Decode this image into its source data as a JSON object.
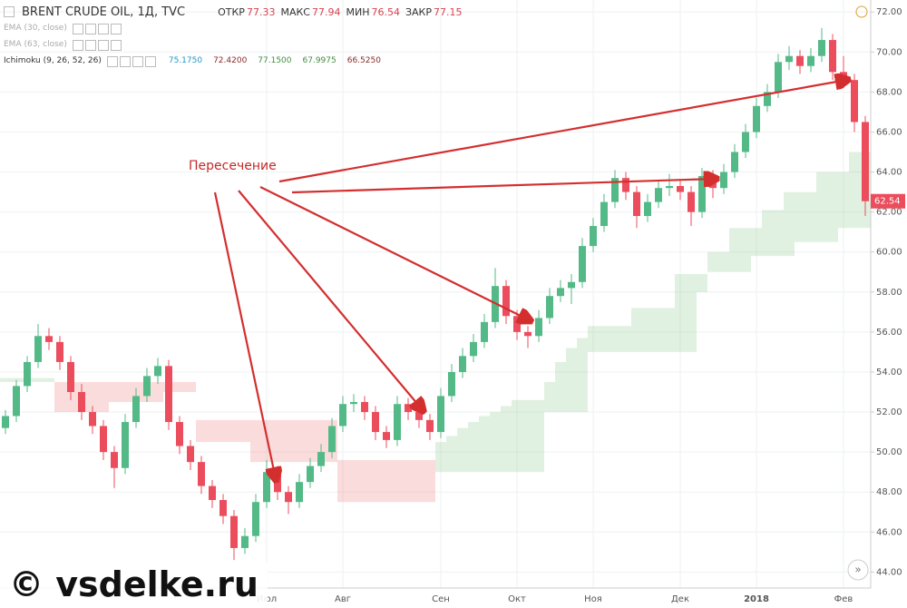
{
  "chart_data": {
    "type": "candlestick",
    "title": "BRENT CRUDE OIL, 1Д, TVC",
    "header": [
      {
        "label": "ОТКР",
        "value": "77.33"
      },
      {
        "label": "МАКС",
        "value": "77.94"
      },
      {
        "label": "МИН",
        "value": "76.54"
      },
      {
        "label": "ЗАКР",
        "value": "77.15"
      }
    ],
    "indicators": [
      {
        "name": "EMA (30, close)"
      },
      {
        "name": "EMA (63, close)"
      },
      {
        "name": "Ichimoku (9, 26, 52, 26)",
        "values": [
          "75.1750",
          "72.4200",
          "77.1500",
          "67.9975",
          "66.5250"
        ],
        "value_colors": [
          "#2196c4",
          "#8b2a2a",
          "#3f8f3f",
          "#3f8f3f",
          "#8b2a2a"
        ]
      }
    ],
    "annotation": "Пересечение",
    "watermark": "© vsdelke.ru",
    "categories": [
      null,
      null,
      null,
      null,
      null,
      null,
      null,
      null,
      null,
      null,
      null,
      null,
      null,
      null,
      null,
      null,
      null,
      null,
      null,
      null,
      null,
      null,
      null,
      null,
      "Июл",
      null,
      null,
      null,
      null,
      null,
      null,
      "Авг",
      null,
      null,
      null,
      null,
      null,
      null,
      null,
      null,
      "Сен",
      null,
      null,
      null,
      null,
      null,
      null,
      "Окт",
      null,
      null,
      null,
      null,
      null,
      null,
      "Ноя",
      null,
      null,
      null,
      null,
      null,
      null,
      null,
      "Дек",
      null,
      null,
      null,
      null,
      null,
      null,
      "2018",
      null,
      null,
      null,
      null,
      null,
      null,
      null,
      "Фев",
      null,
      null
    ],
    "open": [
      51.2,
      51.8,
      53.3,
      54.5,
      55.8,
      55.5,
      54.5,
      53,
      52,
      51.3,
      50,
      49.2,
      51.5,
      52.8,
      53.8,
      54.3,
      51.5,
      50.3,
      49.5,
      48.3,
      47.6,
      46.8,
      45.2,
      45.8,
      47.5,
      49,
      48,
      47.5,
      48.5,
      49.3,
      50,
      51.3,
      52.4,
      52.5,
      52,
      51,
      50.6,
      52.4,
      52,
      51.6,
      51,
      52.8,
      54,
      54.8,
      55.5,
      56.5,
      58.3,
      56.8,
      56,
      55.8,
      56.7,
      57.8,
      58.2,
      58.5,
      60.3,
      61.3,
      62.5,
      63.7,
      63,
      61.8,
      62.5,
      63.2,
      63.3,
      63,
      62,
      63.8,
      63.2,
      64,
      65,
      66,
      67.3,
      68,
      69.5,
      69.8,
      69.3,
      69.8,
      70.6,
      69,
      68.6,
      66.5
    ],
    "high": [
      52.1,
      53.6,
      54.8,
      56.4,
      56.2,
      55.8,
      54.8,
      53.4,
      52.3,
      51.6,
      50.3,
      51.9,
      53.2,
      54.2,
      54.7,
      54.6,
      51.8,
      50.6,
      49.8,
      48.6,
      47.9,
      47.1,
      46.2,
      47.9,
      49.6,
      49.3,
      48.3,
      48.9,
      49.7,
      50.4,
      51.7,
      52.8,
      52.9,
      52.8,
      52.3,
      51.3,
      52.8,
      52.7,
      52.3,
      51.9,
      53.2,
      54.4,
      55.2,
      55.9,
      56.9,
      59.2,
      58.6,
      57.1,
      56.3,
      57.1,
      58.2,
      58.6,
      58.9,
      60.7,
      61.7,
      62.9,
      64.1,
      64,
      63.3,
      62.9,
      63.6,
      63.9,
      63.6,
      63.3,
      64.2,
      64.1,
      64.4,
      65.4,
      66.4,
      67.7,
      68.4,
      69.9,
      70.3,
      70.1,
      70.2,
      71.2,
      70.9,
      69.8,
      68.9,
      66.8
    ],
    "low": [
      50.9,
      51.5,
      53,
      54.2,
      55.1,
      54.1,
      52.6,
      51.6,
      50.9,
      49.6,
      48.2,
      48.9,
      51.2,
      52.5,
      53.4,
      51.1,
      49.9,
      49.1,
      47.9,
      47.2,
      46.4,
      44.6,
      44.9,
      45.5,
      47.2,
      47.6,
      46.9,
      47.2,
      48.2,
      49,
      49.7,
      51,
      52,
      51.6,
      50.6,
      50.2,
      50.3,
      51.6,
      51.2,
      50.6,
      50.7,
      52.5,
      53.7,
      54.5,
      55.2,
      56.2,
      56.4,
      55.6,
      55.2,
      55.5,
      56.4,
      57.5,
      57.4,
      58.2,
      60,
      61,
      62.2,
      62.6,
      61.2,
      61.5,
      62.2,
      62.8,
      62.6,
      61.3,
      61.7,
      62.7,
      62.9,
      63.7,
      64.7,
      65.7,
      67,
      67.7,
      69.1,
      68.9,
      69,
      69.5,
      68.6,
      68.2,
      66,
      61.8
    ],
    "close": [
      51.8,
      53.3,
      54.5,
      55.8,
      55.5,
      54.5,
      53,
      52,
      51.3,
      50,
      49.2,
      51.5,
      52.8,
      53.8,
      54.3,
      51.5,
      50.3,
      49.5,
      48.3,
      47.6,
      46.8,
      45.2,
      45.8,
      47.5,
      49,
      48,
      47.5,
      48.5,
      49.3,
      50,
      51.3,
      52.4,
      52.5,
      52,
      51,
      50.6,
      52.4,
      52,
      51.6,
      51,
      52.8,
      54,
      54.8,
      55.5,
      56.5,
      58.3,
      56.8,
      56,
      55.8,
      56.7,
      57.8,
      58.2,
      58.5,
      60.3,
      61.3,
      62.5,
      63.7,
      63,
      61.8,
      62.5,
      63.2,
      63.3,
      63,
      62,
      63.8,
      63.2,
      64,
      65,
      66,
      67.3,
      68,
      69.5,
      69.8,
      69.3,
      69.8,
      70.6,
      69,
      68.6,
      66.5,
      62.54
    ],
    "up_color": "#53b987",
    "down_color": "#eb4d5c",
    "cloud": {
      "span_a": [
        53.7,
        53.7,
        53.7,
        53.7,
        53.7,
        52,
        52,
        52,
        52,
        52,
        52.5,
        52.5,
        52.5,
        52.5,
        52.5,
        53,
        53,
        53,
        50.5,
        50.5,
        50.5,
        50.5,
        50.5,
        49.5,
        49.5,
        49.5,
        49.5,
        49.5,
        49.5,
        49.5,
        49.5,
        47.5,
        47.5,
        47.5,
        47.5,
        47.5,
        47.5,
        47.5,
        47.5,
        47.5,
        50.5,
        50.8,
        51.2,
        51.5,
        51.8,
        52,
        52.3,
        52.6,
        52.6,
        52.6,
        53.5,
        54.5,
        55.2,
        55.7,
        56.3,
        56.3,
        56.3,
        56.3,
        57.2,
        57.2,
        57.2,
        57.2,
        58.9,
        58.9,
        58.9,
        60,
        60,
        61.2,
        61.2,
        61.2,
        62.1,
        62.1,
        63,
        63,
        63,
        64,
        64,
        64,
        65,
        65
      ],
      "span_b": [
        53.5,
        53.5,
        53.5,
        53.5,
        53.5,
        53.5,
        53.5,
        53.5,
        53.5,
        53.5,
        53.5,
        53.5,
        53.5,
        53.5,
        53.5,
        53.5,
        53.5,
        53.5,
        51.6,
        51.6,
        51.6,
        51.6,
        51.6,
        51.6,
        51.6,
        51.6,
        51.6,
        51.6,
        51.6,
        51.6,
        51.6,
        49.6,
        49.6,
        49.6,
        49.6,
        49.6,
        49.6,
        49.6,
        49.6,
        49.6,
        49,
        49,
        49,
        49,
        49,
        49,
        49,
        49,
        49,
        49,
        52,
        52,
        52,
        52,
        55,
        55,
        55,
        55,
        55,
        55,
        55,
        55,
        55,
        55,
        58,
        59,
        59,
        59,
        59,
        59.8,
        59.8,
        59.8,
        59.8,
        60.5,
        60.5,
        60.5,
        60.5,
        61.2,
        61.2,
        61.2
      ],
      "up_color": "rgba(120,190,120,0.22)",
      "down_color": "rgba(240,130,130,0.28)"
    },
    "ylim": [
      43.2,
      72.6
    ],
    "yticks": [
      {
        "value": 44,
        "label": "44.00"
      },
      {
        "value": 46,
        "label": "46.00"
      },
      {
        "value": 48,
        "label": "48.00"
      },
      {
        "value": 50,
        "label": "50.00"
      },
      {
        "value": 52,
        "label": "52.00"
      },
      {
        "value": 54,
        "label": "54.00"
      },
      {
        "value": 56,
        "label": "56.00"
      },
      {
        "value": 58,
        "label": "58.00"
      },
      {
        "value": 60,
        "label": "60.00"
      },
      {
        "value": 62,
        "label": "62.00"
      },
      {
        "value": 64,
        "label": "64.00"
      },
      {
        "value": 66,
        "label": "66.00"
      },
      {
        "value": 68,
        "label": "68.00"
      },
      {
        "value": 70,
        "label": "70.00"
      },
      {
        "value": 72,
        "label": "72.00"
      }
    ],
    "grid": true
  }
}
